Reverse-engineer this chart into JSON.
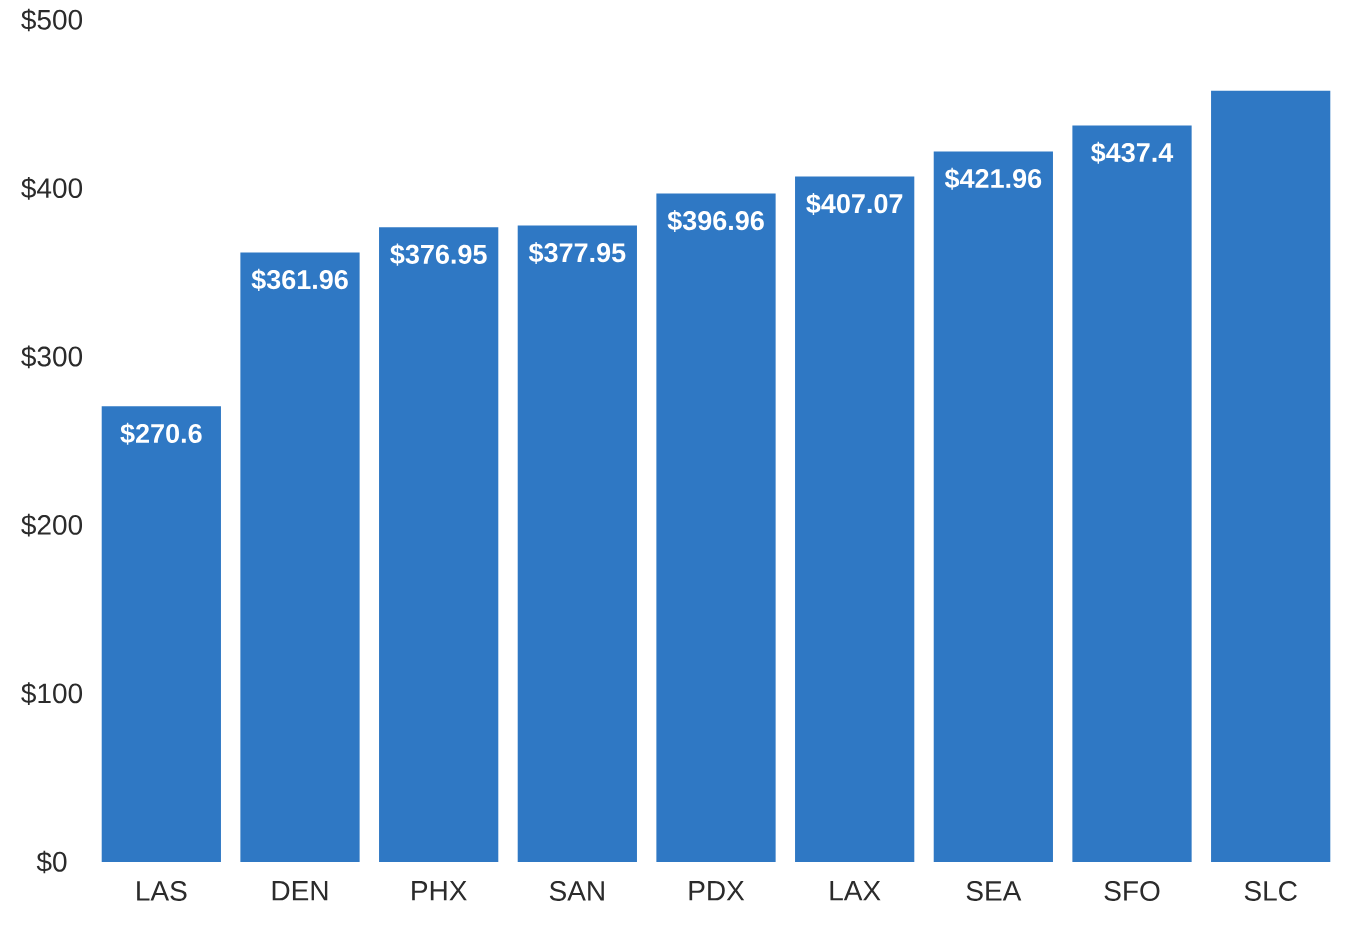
{
  "chart_data": {
    "type": "bar",
    "categories": [
      "LAS",
      "DEN",
      "PHX",
      "SAN",
      "PDX",
      "LAX",
      "SEA",
      "SFO",
      "SLC"
    ],
    "values": [
      270.6,
      361.96,
      376.95,
      377.95,
      396.96,
      407.07,
      421.96,
      437.4,
      458
    ],
    "value_labels": [
      "$270.6",
      "$361.96",
      "$376.95",
      "$377.95",
      "$396.96",
      "$407.07",
      "$421.96",
      "$437.4",
      null
    ],
    "color": "#2f78c4",
    "ylim": [
      0,
      500
    ],
    "yticks": [
      {
        "value": 0,
        "label": "$0"
      },
      {
        "value": 100,
        "label": "$100"
      },
      {
        "value": 200,
        "label": "$200"
      },
      {
        "value": 300,
        "label": "$300"
      },
      {
        "value": 400,
        "label": "$400"
      },
      {
        "value": 500,
        "label": "$500"
      }
    ]
  }
}
